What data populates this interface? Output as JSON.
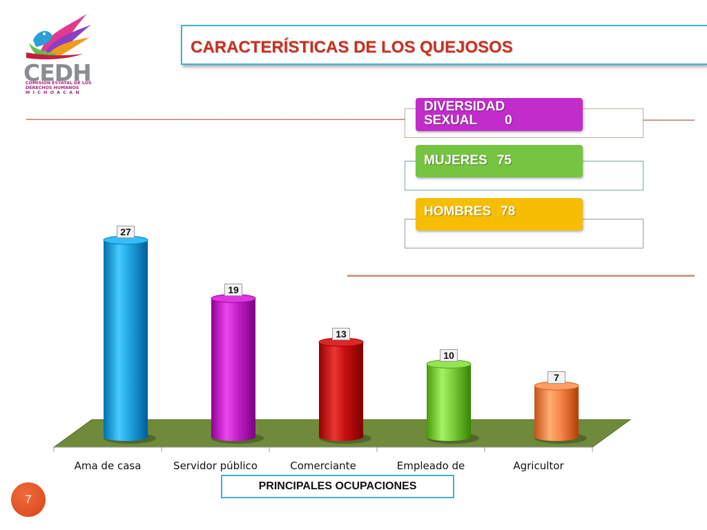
{
  "header": {
    "title": "CARACTERÍSTICAS DE LOS QUEJOSOS"
  },
  "logo": {
    "name": "CEDH",
    "line1": "COMISION ESTATAL DE LOS",
    "line2": "DERECHOS HUMANOS",
    "line3": "MICHOACAN"
  },
  "summary": {
    "diversidad": {
      "label_line1": "DIVERSIDAD",
      "label_line2": "SEXUAL",
      "value": "0",
      "color": "#c22ccb"
    },
    "mujeres": {
      "label": "MUJERES",
      "value": "75",
      "color": "#76c442"
    },
    "hombres": {
      "label": "HOMBRES",
      "value": "78",
      "color": "#f7bd00"
    }
  },
  "chart_data": {
    "type": "bar",
    "title": "",
    "xlabel": "PRINCIPALES OCUPACIONES",
    "ylabel": "",
    "categories": [
      "Ama de casa",
      "Servidor público",
      "Comerciante",
      "Empleado de",
      "Agricultor"
    ],
    "values": [
      27,
      19,
      13,
      10,
      7
    ],
    "colors": [
      "#1ea3e0",
      "#c21fc7",
      "#c40e0e",
      "#7ccb3c",
      "#f7854a"
    ],
    "ylim": [
      0,
      30
    ],
    "grid": false,
    "legend": "none"
  },
  "footer": {
    "page_number": "7"
  }
}
